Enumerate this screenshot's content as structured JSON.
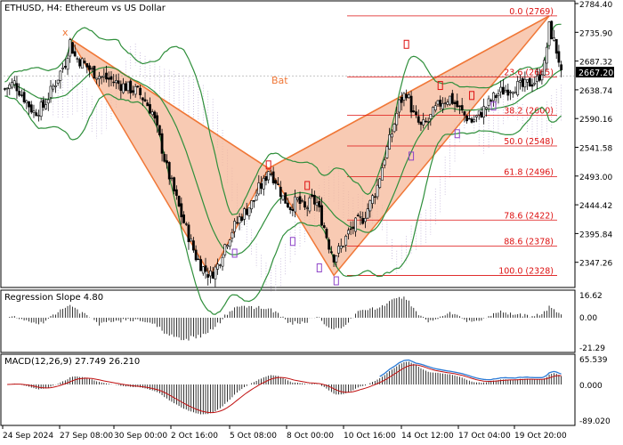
{
  "chart_title": "ETHUSD, H4:  Ethereum vs US Dollar",
  "pattern_label": "Bat",
  "pattern_x_label": "x",
  "current_price": "2667.20",
  "colors": {
    "bg": "#ffffff",
    "candle": "#000000",
    "band": "#2f8f3b",
    "pattern_fill": "#f6b89a",
    "pattern_line": "#f07838",
    "fib_line": "#dd1111",
    "fib_text": "#dd1111",
    "cloud": "#b9a9d2",
    "macd_signal": "#c01010",
    "macd_upper_signal": "#2b7bd6",
    "marker_red": "#dd1111",
    "marker_purple": "#8e44c8"
  },
  "chart_data": [
    {
      "type": "candlestick",
      "title": "ETHUSD, H4:  Ethereum vs US Dollar",
      "x_tick_labels": [
        "24 Sep 2024",
        "27 Sep 08:00",
        "30 Sep 00:00",
        "2 Oct 16:00",
        "5 Oct 08:00",
        "8 Oct 00:00",
        "10 Oct 16:00",
        "14 Oct 12:00",
        "17 Oct 04:00",
        "19 Oct 20:00"
      ],
      "y_tick_labels": [
        "2784.40",
        "2735.90",
        "2687.32",
        "2638.74",
        "2590.16",
        "2541.58",
        "2493.00",
        "2444.42",
        "2395.84",
        "2347.26"
      ],
      "ylim": [
        2312,
        2790
      ],
      "close_path": [
        [
          0,
          2645
        ],
        [
          4,
          2655
        ],
        [
          8,
          2630
        ],
        [
          12,
          2605
        ],
        [
          16,
          2615
        ],
        [
          19,
          2640
        ],
        [
          22,
          2665
        ],
        [
          25,
          2690
        ],
        [
          27,
          2725
        ],
        [
          29,
          2700
        ],
        [
          32,
          2690
        ],
        [
          36,
          2675
        ],
        [
          40,
          2665
        ],
        [
          44,
          2660
        ],
        [
          48,
          2652
        ],
        [
          52,
          2645
        ],
        [
          55,
          2640
        ],
        [
          58,
          2625
        ],
        [
          61,
          2605
        ],
        [
          64,
          2560
        ],
        [
          67,
          2510
        ],
        [
          70,
          2470
        ],
        [
          73,
          2430
        ],
        [
          76,
          2395
        ],
        [
          79,
          2360
        ],
        [
          82,
          2340
        ],
        [
          85,
          2328
        ],
        [
          88,
          2345
        ],
        [
          91,
          2380
        ],
        [
          94,
          2405
        ],
        [
          97,
          2425
        ],
        [
          100,
          2440
        ],
        [
          103,
          2455
        ],
        [
          105,
          2475
        ],
        [
          107,
          2485
        ],
        [
          109,
          2508
        ],
        [
          112,
          2490
        ],
        [
          115,
          2460
        ],
        [
          118,
          2445
        ],
        [
          121,
          2455
        ],
        [
          124,
          2440
        ],
        [
          127,
          2455
        ],
        [
          129,
          2450
        ],
        [
          132,
          2410
        ],
        [
          134,
          2380
        ],
        [
          136,
          2360
        ],
        [
          139,
          2375
        ],
        [
          142,
          2400
        ],
        [
          145,
          2415
        ],
        [
          148,
          2425
        ],
        [
          151,
          2450
        ],
        [
          154,
          2480
        ],
        [
          157,
          2530
        ],
        [
          160,
          2570
        ],
        [
          163,
          2620
        ],
        [
          166,
          2640
        ],
        [
          169,
          2600
        ],
        [
          172,
          2580
        ],
        [
          175,
          2590
        ],
        [
          178,
          2610
        ],
        [
          181,
          2625
        ],
        [
          184,
          2630
        ],
        [
          187,
          2615
        ],
        [
          190,
          2600
        ],
        [
          193,
          2590
        ],
        [
          196,
          2600
        ],
        [
          199,
          2615
        ],
        [
          202,
          2630
        ],
        [
          205,
          2640
        ],
        [
          208,
          2645
        ],
        [
          211,
          2650
        ],
        [
          214,
          2648
        ],
        [
          217,
          2655
        ],
        [
          220,
          2660
        ],
        [
          223,
          2685
        ],
        [
          225,
          2750
        ],
        [
          227,
          2725
        ],
        [
          229,
          2695
        ],
        [
          230,
          2667
        ]
      ],
      "pattern": {
        "name": "Bat",
        "points": [
          {
            "label": "x",
            "value": 2730
          },
          {
            "value": 2328
          },
          {
            "value": 2510
          },
          {
            "value": 2328
          },
          {
            "value": 2769
          }
        ]
      },
      "fibonacci_levels": [
        {
          "label": "0.0 (2769)",
          "ratio": 0.0,
          "value": 2769
        },
        {
          "label": "23.6 (2665)",
          "ratio": 23.6,
          "value": 2665
        },
        {
          "label": "38.2 (2600)",
          "ratio": 38.2,
          "value": 2600
        },
        {
          "label": "50.0 (2548)",
          "ratio": 50.0,
          "value": 2548
        },
        {
          "label": "61.8 (2496)",
          "ratio": 61.8,
          "value": 2496
        },
        {
          "label": "78.6 (2422)",
          "ratio": 78.6,
          "value": 2422
        },
        {
          "label": "88.6 (2378)",
          "ratio": 88.6,
          "value": 2378
        },
        {
          "label": "100.0 (2328)",
          "ratio": 100.0,
          "value": 2328
        }
      ],
      "last_price": 2667.2
    },
    {
      "type": "histogram",
      "title": "Regression Slope 4.80",
      "y_tick_labels": [
        "16.62",
        "0.00",
        "-21.29"
      ],
      "ylim": [
        -21.29,
        16.62
      ],
      "last_value": 4.8
    },
    {
      "type": "macd",
      "title": "MACD(12,26,9) 27.749 26.210",
      "y_tick_labels": [
        "65.539",
        "0.000",
        "-89.020"
      ],
      "ylim": [
        -89.02,
        65.539
      ],
      "macd": 27.749,
      "signal": 26.21
    }
  ]
}
